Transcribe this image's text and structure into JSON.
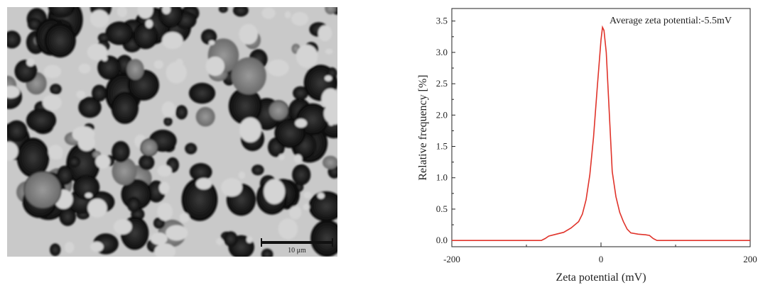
{
  "micrograph": {
    "scale_bar_label": "10 μm"
  },
  "chart_data": {
    "type": "line",
    "xlabel": "Zeta potential (mV)",
    "ylabel": "Relative frequency [%]",
    "annotation": "Average zeta potential:-5.5mV",
    "xlim": [
      -200,
      200
    ],
    "ylim": [
      -0.1,
      3.7
    ],
    "x_ticks": [
      -200,
      0,
      200
    ],
    "y_ticks": [
      0.0,
      0.5,
      1.0,
      1.5,
      2.0,
      2.5,
      3.0,
      3.5
    ],
    "grid": false,
    "line_color": "#e0332a",
    "series": [
      {
        "x": [
          -200,
          -80,
          -75,
          -70,
          -60,
          -50,
          -40,
          -30,
          -25,
          -20,
          -15,
          -10,
          -5,
          0,
          2,
          4,
          7,
          10,
          15,
          20,
          25,
          30,
          35,
          40,
          50,
          60,
          65,
          70,
          75,
          80,
          200
        ],
        "values": [
          0.0,
          0.0,
          0.03,
          0.07,
          0.1,
          0.13,
          0.2,
          0.3,
          0.42,
          0.65,
          1.05,
          1.65,
          2.45,
          3.2,
          3.4,
          3.35,
          3.0,
          2.3,
          1.1,
          0.7,
          0.45,
          0.3,
          0.18,
          0.12,
          0.1,
          0.09,
          0.08,
          0.03,
          0.0,
          0.0,
          0.0
        ]
      }
    ]
  }
}
